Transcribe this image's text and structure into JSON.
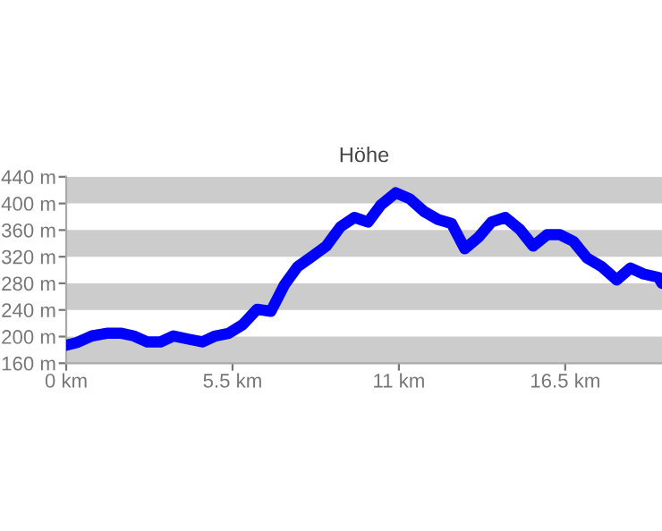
{
  "chart_data": {
    "type": "line",
    "title": "Höhe",
    "x": [
      0,
      0.35,
      0.85,
      1.34,
      1.83,
      2.23,
      2.68,
      3.12,
      3.55,
      4.06,
      4.5,
      4.93,
      5.38,
      5.84,
      6.31,
      6.77,
      7.22,
      7.65,
      8.15,
      8.6,
      9.07,
      9.53,
      9.98,
      10.41,
      10.9,
      11.36,
      11.83,
      12.29,
      12.74,
      13.18,
      13.63,
      14.06,
      14.52,
      15.0,
      15.44,
      15.9,
      16.33,
      16.77,
      17.22,
      17.71,
      18.2,
      18.66,
      19.09,
      19.58,
      19.7
    ],
    "series": [
      {
        "color": "#0000ff",
        "values": [
          187,
          191,
          201,
          205,
          205,
          201,
          192,
          192,
          201,
          196,
          192,
          201,
          205,
          218,
          241,
          238,
          278,
          305,
          321,
          336,
          365,
          379,
          372,
          398,
          416,
          407,
          388,
          376,
          370,
          332,
          349,
          372,
          379,
          361,
          336,
          353,
          353,
          343,
          318,
          305,
          285,
          303,
          294,
          289,
          280
        ]
      }
    ],
    "xlim": [
      0,
      19.7
    ],
    "ylim": [
      160,
      440
    ],
    "xticks": [
      {
        "value": 0,
        "label": "0 km"
      },
      {
        "value": 5.5,
        "label": "5.5 km"
      },
      {
        "value": 11,
        "label": "11 km"
      },
      {
        "value": 16.5,
        "label": "16.5 km"
      }
    ],
    "yticks": [
      {
        "value": 160,
        "label": "160 m"
      },
      {
        "value": 200,
        "label": "200 m"
      },
      {
        "value": 240,
        "label": "240 m"
      },
      {
        "value": 280,
        "label": "280 m"
      },
      {
        "value": 320,
        "label": "320 m"
      },
      {
        "value": 360,
        "label": "360 m"
      },
      {
        "value": 400,
        "label": "400 m"
      },
      {
        "value": 440,
        "label": "440 m"
      }
    ],
    "bands": [
      {
        "axis": "y",
        "from": 160,
        "to": 200,
        "color": "#cccccc"
      },
      {
        "axis": "y",
        "from": 240,
        "to": 280,
        "color": "#cccccc"
      },
      {
        "axis": "y",
        "from": 320,
        "to": 360,
        "color": "#cccccc"
      },
      {
        "axis": "y",
        "from": 400,
        "to": 440,
        "color": "#cccccc"
      }
    ],
    "grid": false,
    "marker": "none",
    "line_style": "solid"
  }
}
